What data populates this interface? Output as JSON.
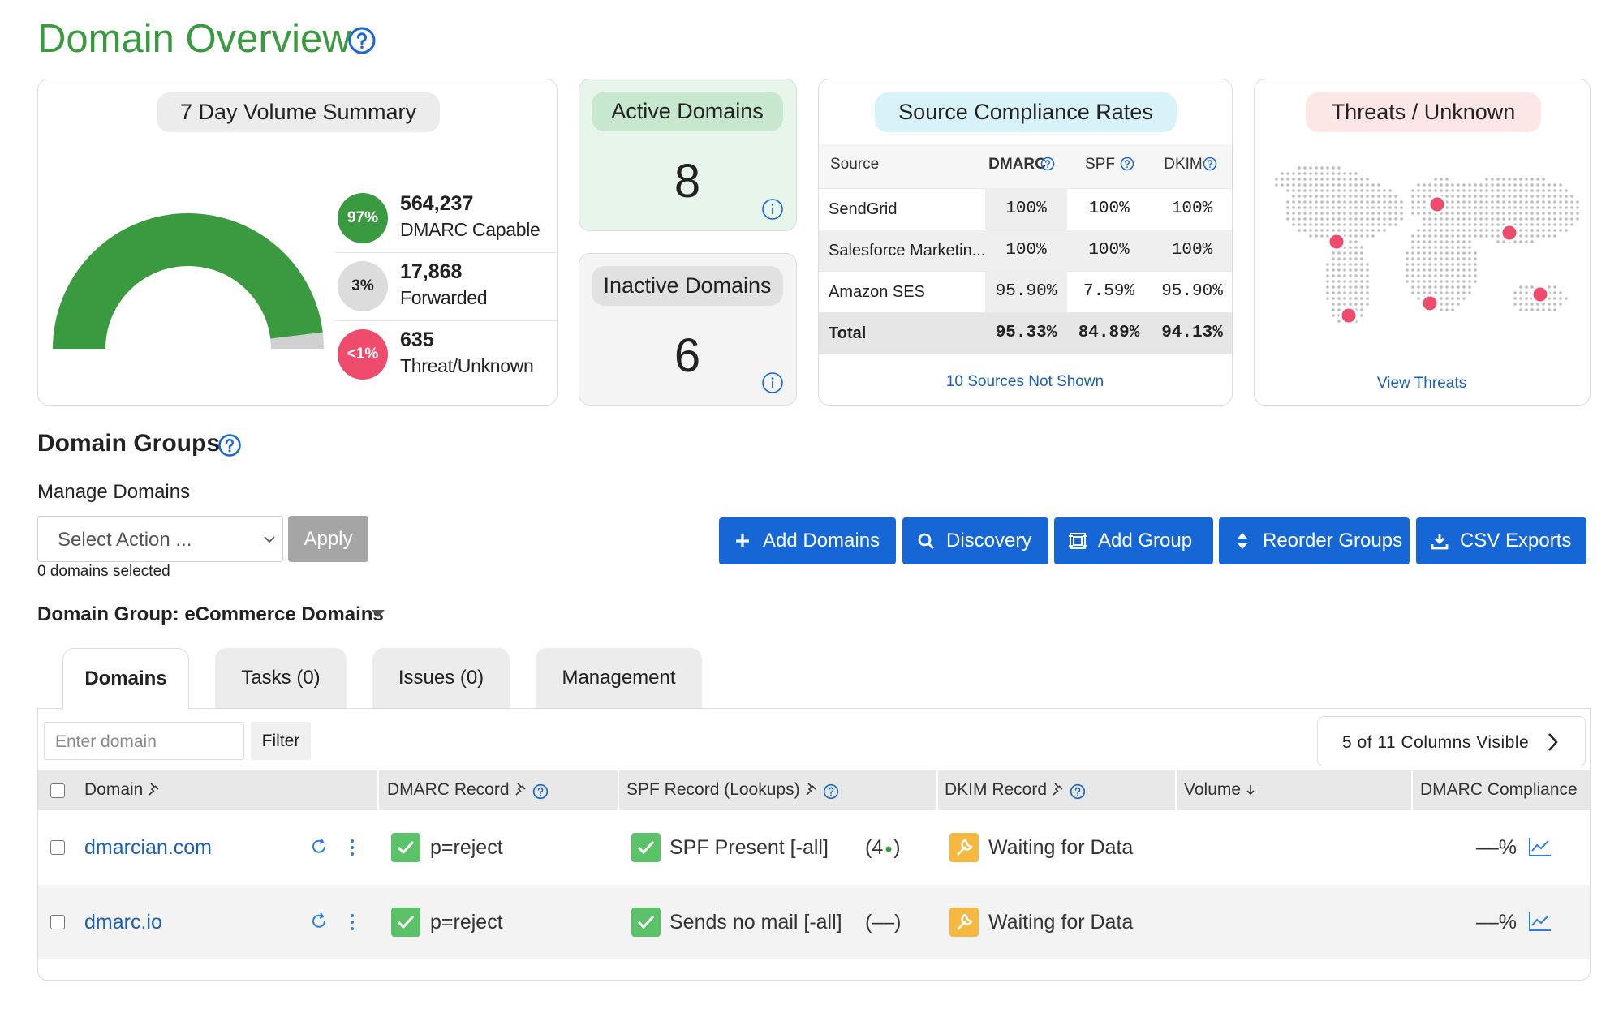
{
  "header": {
    "title": "Domain Overview"
  },
  "volume_summary": {
    "title": "7 Day Volume Summary",
    "items": [
      {
        "badge": "97%",
        "value": "564,237",
        "label": "DMARC Capable"
      },
      {
        "badge": "3%",
        "value": "17,868",
        "label": "Forwarded"
      },
      {
        "badge": "<1%",
        "value": "635",
        "label": "Threat/Unknown"
      }
    ]
  },
  "active_domains": {
    "title": "Active Domains",
    "count": 8
  },
  "inactive_domains": {
    "title": "Inactive Domains",
    "count": 6
  },
  "compliance": {
    "title": "Source Compliance Rates",
    "columns": [
      "Source",
      "DMARC",
      "SPF",
      "DKIM"
    ],
    "rows": [
      [
        "SendGrid",
        "100%",
        "100%",
        "100%"
      ],
      [
        "Salesforce Marketin...",
        "100%",
        "100%",
        "100%"
      ],
      [
        "Amazon SES",
        "95.90%",
        "7.59%",
        "95.90%"
      ]
    ],
    "total": [
      "Total",
      "95.33%",
      "84.89%",
      "94.13%"
    ],
    "footer": "10 Sources Not Shown"
  },
  "threats": {
    "title": "Threats / Unknown",
    "link": "View Threats"
  },
  "domain_groups": {
    "title": "Domain Groups",
    "manage_label": "Manage Domains",
    "select_placeholder": "Select Action ...",
    "apply": "Apply",
    "selected_count": "0 domains selected",
    "buttons": [
      "Add Domains",
      "Discovery",
      "Add Group",
      "Reorder Groups",
      "CSV Exports"
    ],
    "group_label": "Domain Group: eCommerce Domains"
  },
  "tabs": [
    "Domains",
    "Tasks (0)",
    "Issues (0)",
    "Management"
  ],
  "table": {
    "filter_placeholder": "Enter domain",
    "filter_button": "Filter",
    "columns_visible": "5 of 11 Columns Visible",
    "columns": [
      "Domain",
      "DMARC Record",
      "SPF Record (Lookups)",
      "DKIM Record",
      "Volume",
      "DMARC Compliance"
    ],
    "rows": [
      {
        "domain": "dmarcian.com",
        "dmarc": "p=reject",
        "spf": "SPF Present [-all]",
        "lookups": "(4",
        "lookups_end": ")",
        "dkim": "Waiting for Data",
        "compliance": "––%"
      },
      {
        "domain": "dmarc.io",
        "dmarc": "p=reject",
        "spf": "Sends no mail [-all]",
        "lookups": "(––)",
        "dkim": "Waiting for Data",
        "compliance": "––%"
      }
    ]
  }
}
